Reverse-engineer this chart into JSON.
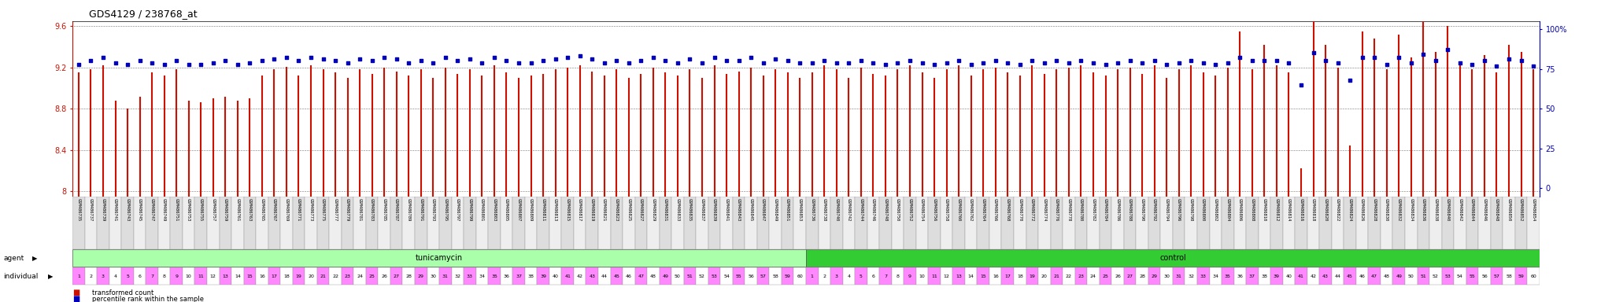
{
  "title": "GDS4129 / 238768_at",
  "ylim_left": [
    7.95,
    9.65
  ],
  "ylim_right": [
    -5,
    105
  ],
  "yticks_left": [
    8.0,
    8.4,
    8.8,
    9.2,
    9.6
  ],
  "ytick_labels_left": [
    "8",
    "8.4",
    "8.8",
    "9.2",
    "9.6"
  ],
  "yticks_right": [
    0,
    25,
    50,
    75,
    100
  ],
  "ytick_labels_right": [
    "0",
    "25",
    "50",
    "75",
    "100%"
  ],
  "bar_color": "#CC1100",
  "dot_color": "#0000BB",
  "left_axis_color": "#CC1100",
  "right_axis_color": "#0000BB",
  "title_color": "#000000",
  "tunicamycin_bg": "#AAFFAA",
  "control_bg": "#33CC33",
  "indiv_pink": "#FF88FF",
  "indiv_white": "#FFFFFF",
  "gsm_bg_odd": "#DDDDDD",
  "gsm_bg_even": "#EEEEEE",
  "gsm_ids_tunicamycin": [
    "GSM486735",
    "GSM486737",
    "GSM486739",
    "GSM486741",
    "GSM486743",
    "GSM486745",
    "GSM486747",
    "GSM486749",
    "GSM486751",
    "GSM486753",
    "GSM486755",
    "GSM486757",
    "GSM486759",
    "GSM486761",
    "GSM486763",
    "GSM486765",
    "GSM486767",
    "GSM486769",
    "GSM486771",
    "GSM486773",
    "GSM486775",
    "GSM486777",
    "GSM486779",
    "GSM486781",
    "GSM486783",
    "GSM486785",
    "GSM486787",
    "GSM486789",
    "GSM486791",
    "GSM486793",
    "GSM486795",
    "GSM486797",
    "GSM486799",
    "GSM486801",
    "GSM486803",
    "GSM486805",
    "GSM486807",
    "GSM486809",
    "GSM486811",
    "GSM486813",
    "GSM486815",
    "GSM486817",
    "GSM486819",
    "GSM486821",
    "GSM486823",
    "GSM486825",
    "GSM486827",
    "GSM486829",
    "GSM486831",
    "GSM486833",
    "GSM486835",
    "GSM486837",
    "GSM486839",
    "GSM486841",
    "GSM486843",
    "GSM486845",
    "GSM486847",
    "GSM486849",
    "GSM486851",
    "GSM486853"
  ],
  "gsm_ids_control": [
    "GSM486736",
    "GSM486738",
    "GSM486740",
    "GSM486742",
    "GSM486744",
    "GSM486746",
    "GSM486748",
    "GSM486750",
    "GSM486752",
    "GSM486754",
    "GSM486756",
    "GSM486758",
    "GSM486760",
    "GSM486762",
    "GSM486764",
    "GSM486766",
    "GSM486768",
    "GSM486770",
    "GSM486772",
    "GSM486774",
    "GSM486776",
    "GSM486778",
    "GSM486780",
    "GSM486782",
    "GSM486784",
    "GSM486786",
    "GSM486788",
    "GSM486790",
    "GSM486792",
    "GSM486794",
    "GSM486796",
    "GSM486798",
    "GSM486800",
    "GSM486802",
    "GSM486804",
    "GSM486806",
    "GSM486808",
    "GSM486810",
    "GSM486812",
    "GSM486814",
    "GSM486816",
    "GSM486818",
    "GSM486820",
    "GSM486822",
    "GSM486824",
    "GSM486826",
    "GSM486828",
    "GSM486830",
    "GSM486832",
    "GSM486834",
    "GSM486836",
    "GSM486838",
    "GSM486840",
    "GSM486842",
    "GSM486844",
    "GSM486846",
    "GSM486848",
    "GSM486850",
    "GSM486852",
    "GSM486854"
  ],
  "values_tunicamycin": [
    9.15,
    9.18,
    9.22,
    8.88,
    8.8,
    8.92,
    9.15,
    9.12,
    9.18,
    8.88,
    8.86,
    8.9,
    8.92,
    8.88,
    8.9,
    9.12,
    9.18,
    9.21,
    9.12,
    9.22,
    9.18,
    9.15,
    9.1,
    9.18,
    9.14,
    9.2,
    9.16,
    9.12,
    9.18,
    9.1,
    9.2,
    9.14,
    9.18,
    9.12,
    9.22,
    9.15,
    9.1,
    9.12,
    9.14,
    9.18,
    9.2,
    9.22,
    9.16,
    9.12,
    9.18,
    9.1,
    9.14,
    9.2,
    9.15,
    9.12,
    9.18,
    9.1,
    9.22,
    9.14,
    9.16,
    9.2,
    9.12,
    9.18,
    9.15,
    9.1
  ],
  "values_control": [
    9.15,
    9.22,
    9.18,
    9.1,
    9.2,
    9.14,
    9.12,
    9.18,
    9.22,
    9.15,
    9.1,
    9.18,
    9.22,
    9.12,
    9.18,
    9.2,
    9.15,
    9.12,
    9.22,
    9.14,
    9.18,
    9.2,
    9.22,
    9.15,
    9.12,
    9.18,
    9.2,
    9.14,
    9.22,
    9.1,
    9.18,
    9.22,
    9.15,
    9.12,
    9.2,
    9.55,
    9.18,
    9.42,
    9.22,
    9.15,
    8.22,
    9.65,
    9.42,
    9.2,
    8.44,
    9.55,
    9.48,
    9.18,
    9.52,
    9.3,
    9.68,
    9.35,
    9.6,
    9.22,
    9.18,
    9.32,
    9.15,
    9.42,
    9.35,
    9.18
  ],
  "pct_tunicamycin": [
    78,
    80,
    82,
    79,
    78,
    80,
    79,
    78,
    80,
    78,
    78,
    79,
    80,
    78,
    79,
    80,
    81,
    82,
    80,
    82,
    81,
    80,
    79,
    81,
    80,
    82,
    81,
    79,
    80,
    79,
    82,
    80,
    81,
    79,
    82,
    80,
    79,
    79,
    80,
    81,
    82,
    83,
    81,
    79,
    80,
    79,
    80,
    82,
    80,
    79,
    81,
    79,
    82,
    80,
    80,
    82,
    79,
    81,
    80,
    79
  ],
  "pct_control": [
    79,
    80,
    79,
    79,
    80,
    79,
    78,
    79,
    80,
    79,
    78,
    79,
    80,
    78,
    79,
    80,
    79,
    78,
    80,
    79,
    80,
    79,
    80,
    79,
    78,
    79,
    80,
    79,
    80,
    78,
    79,
    80,
    79,
    78,
    79,
    82,
    80,
    80,
    80,
    79,
    65,
    85,
    80,
    79,
    68,
    82,
    82,
    78,
    82,
    79,
    84,
    80,
    87,
    79,
    78,
    80,
    77,
    81,
    80,
    77
  ]
}
